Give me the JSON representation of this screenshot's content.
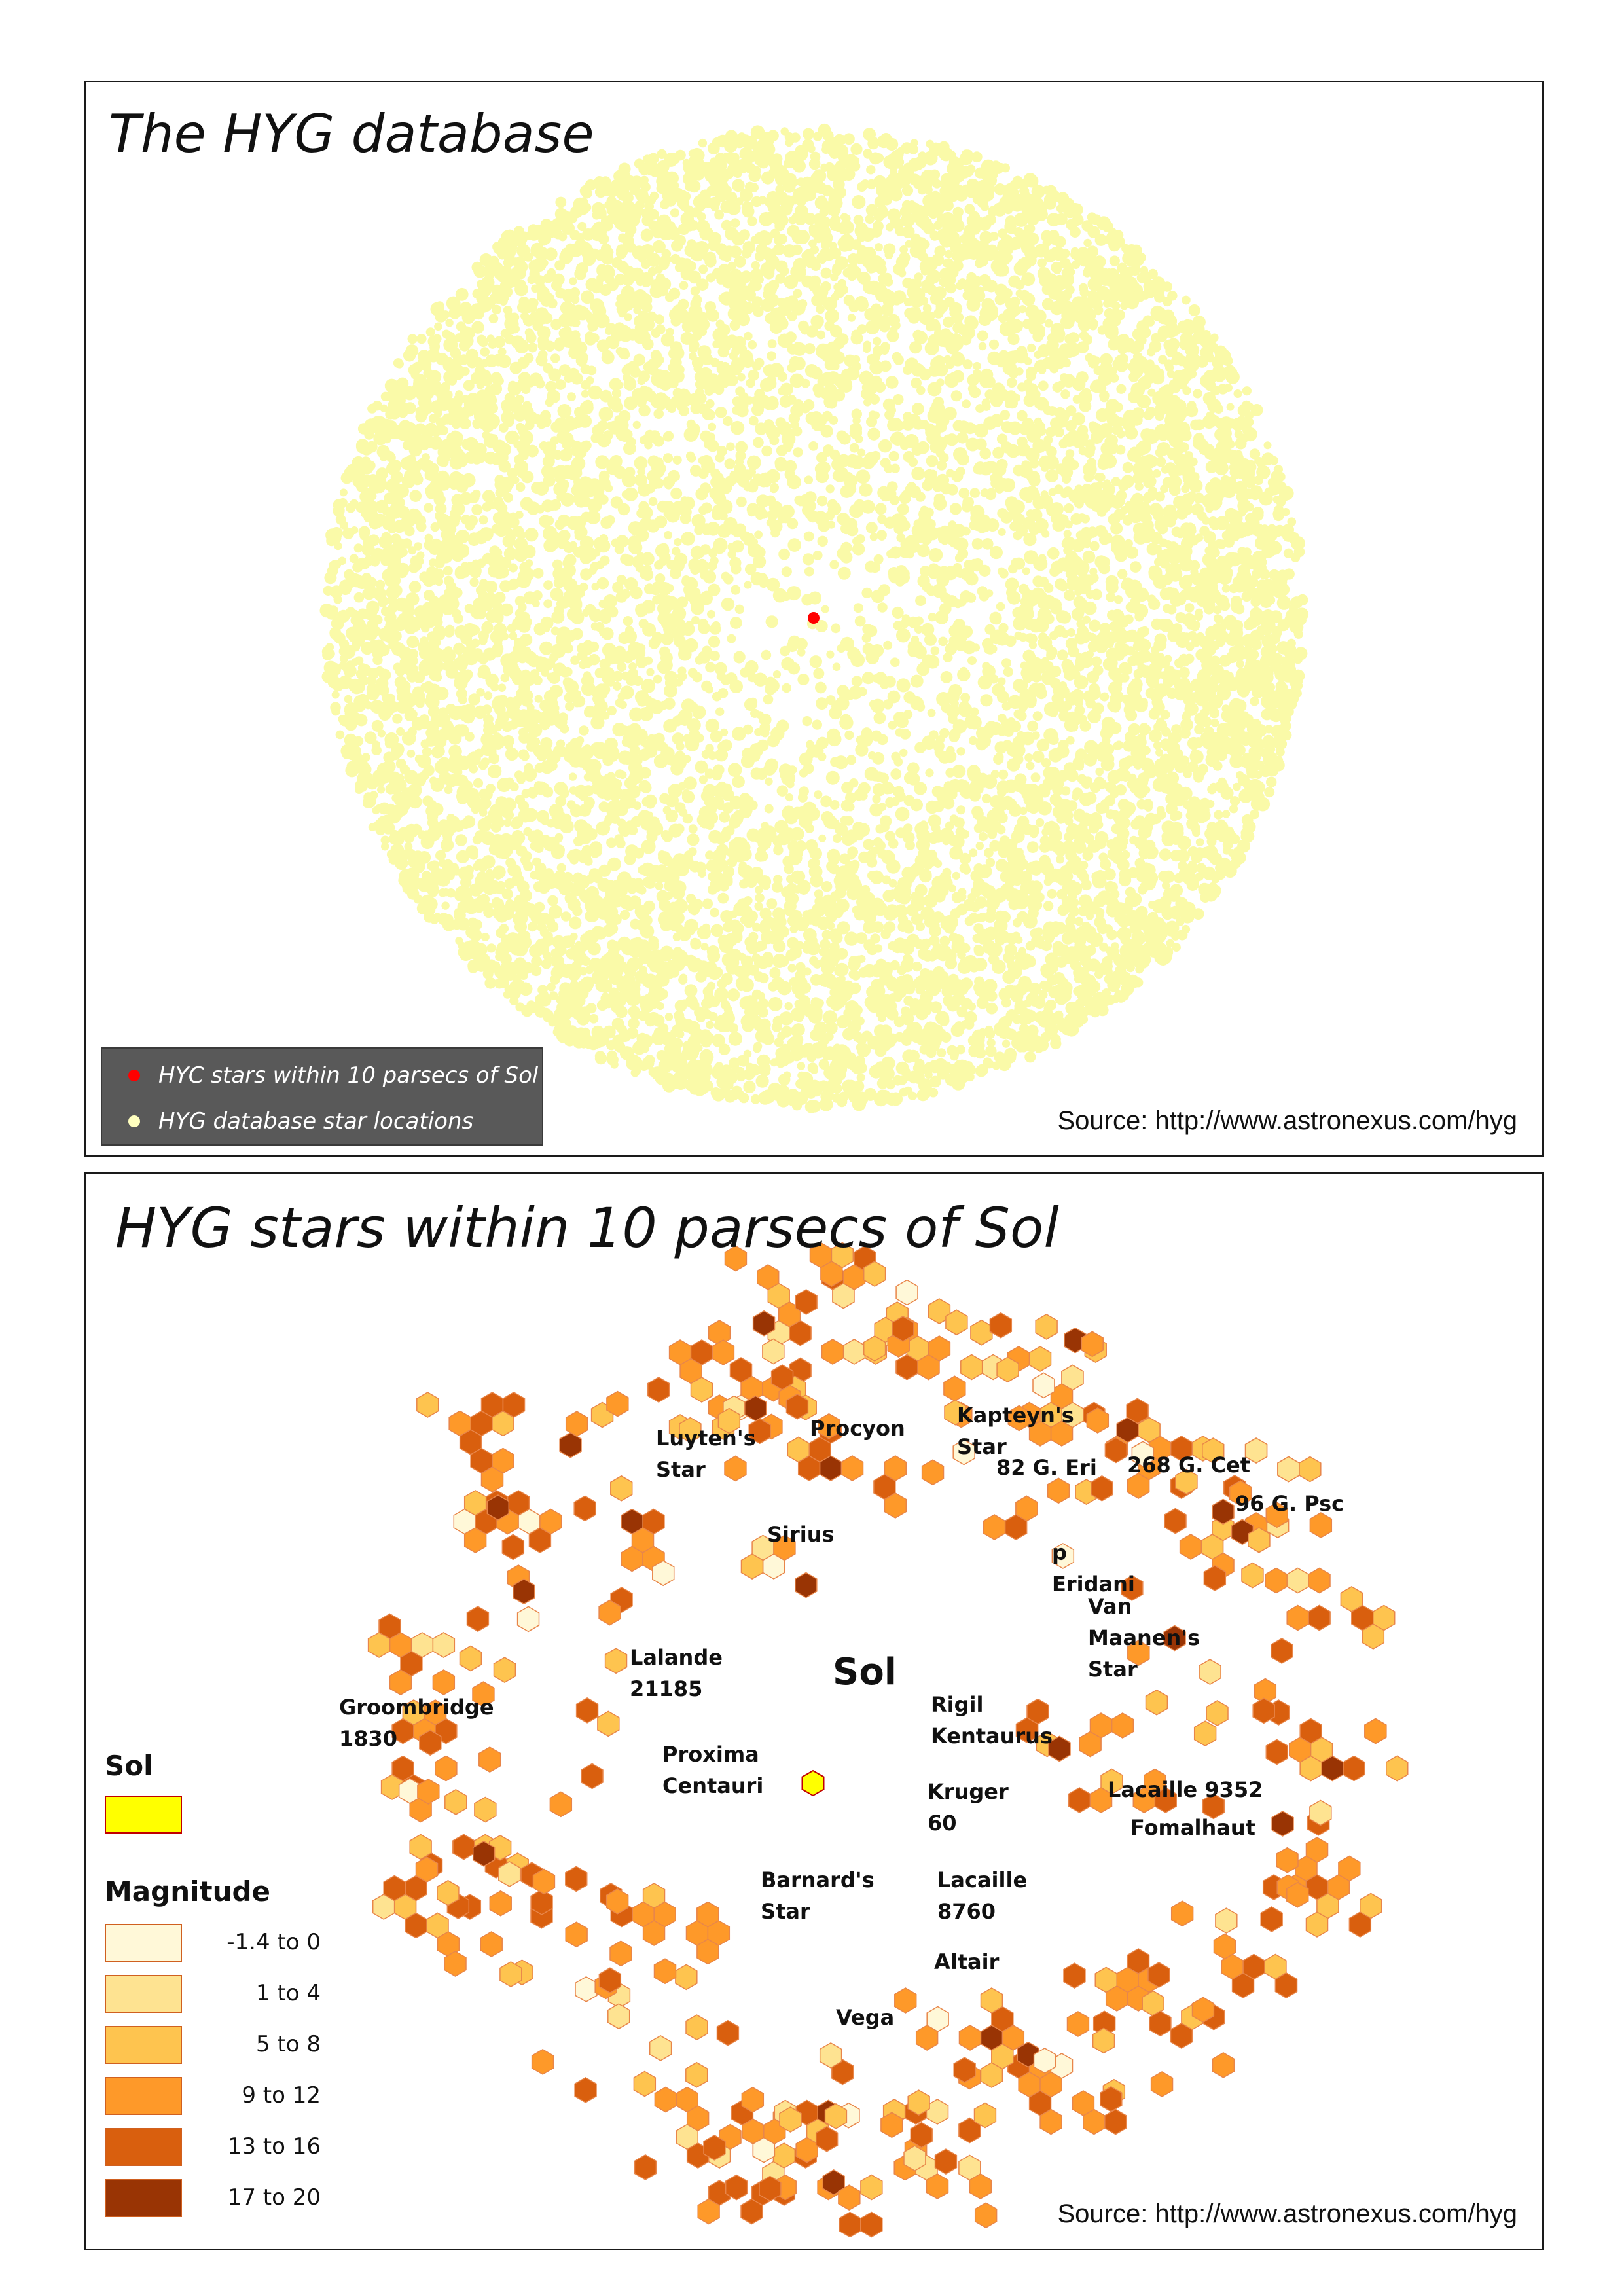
{
  "top_panel": {
    "title": "The HYG database",
    "source": "Source: http://www.astronexus.com/hyg",
    "legend": [
      {
        "label": "HYC stars within 10 parsecs of Sol",
        "color": "#ff0000"
      },
      {
        "label": "HYG database star locations",
        "color": "#ffffbf"
      }
    ],
    "sol_marker": {
      "label": "Sol",
      "color": "#ff0000"
    },
    "star_color": "#fafaa8"
  },
  "bottom_panel": {
    "title": "HYG stars within 10 parsecs of Sol",
    "source": "Source: http://www.astronexus.com/hyg",
    "sol_legend": {
      "heading": "Sol",
      "color": "#ffff00"
    },
    "magnitude_legend": {
      "heading": "Magnitude",
      "classes": [
        {
          "label": "-1.4 to 0",
          "color": "#fff8d8"
        },
        {
          "label": "1 to 4",
          "color": "#fee391"
        },
        {
          "label": "5 to 8",
          "color": "#fec44f"
        },
        {
          "label": "9 to 12",
          "color": "#fe9929"
        },
        {
          "label": "13 to 16",
          "color": "#d95f0e"
        },
        {
          "label": "17 to 20",
          "color": "#993404"
        }
      ]
    },
    "star_labels": [
      {
        "lines": [
          "Procyon"
        ]
      },
      {
        "lines": [
          "Kapteyn's",
          "Star"
        ]
      },
      {
        "lines": [
          "Luyten's",
          "Star"
        ]
      },
      {
        "lines": [
          "268 G. Cet"
        ]
      },
      {
        "lines": [
          "82 G. Eri"
        ]
      },
      {
        "lines": [
          "96 G. Psc"
        ]
      },
      {
        "lines": [
          "Sirius"
        ]
      },
      {
        "lines": [
          "p",
          "Eridani"
        ]
      },
      {
        "lines": [
          "Van",
          "Maanen's",
          "Star"
        ]
      },
      {
        "lines": [
          "Lalande",
          "21185"
        ]
      },
      {
        "lines": [
          "Sol"
        ]
      },
      {
        "lines": [
          "Rigil",
          "Kentaurus"
        ]
      },
      {
        "lines": [
          "Groombridge",
          "1830"
        ]
      },
      {
        "lines": [
          "Proxima",
          "Centauri"
        ]
      },
      {
        "lines": [
          "Kruger",
          "60"
        ]
      },
      {
        "lines": [
          "Lacaille 9352"
        ]
      },
      {
        "lines": [
          "Fomalhaut"
        ]
      },
      {
        "lines": [
          "Barnard's",
          "Star"
        ]
      },
      {
        "lines": [
          "Lacaille",
          "8760"
        ]
      },
      {
        "lines": [
          "Altair"
        ]
      },
      {
        "lines": [
          "Vega"
        ]
      }
    ]
  }
}
